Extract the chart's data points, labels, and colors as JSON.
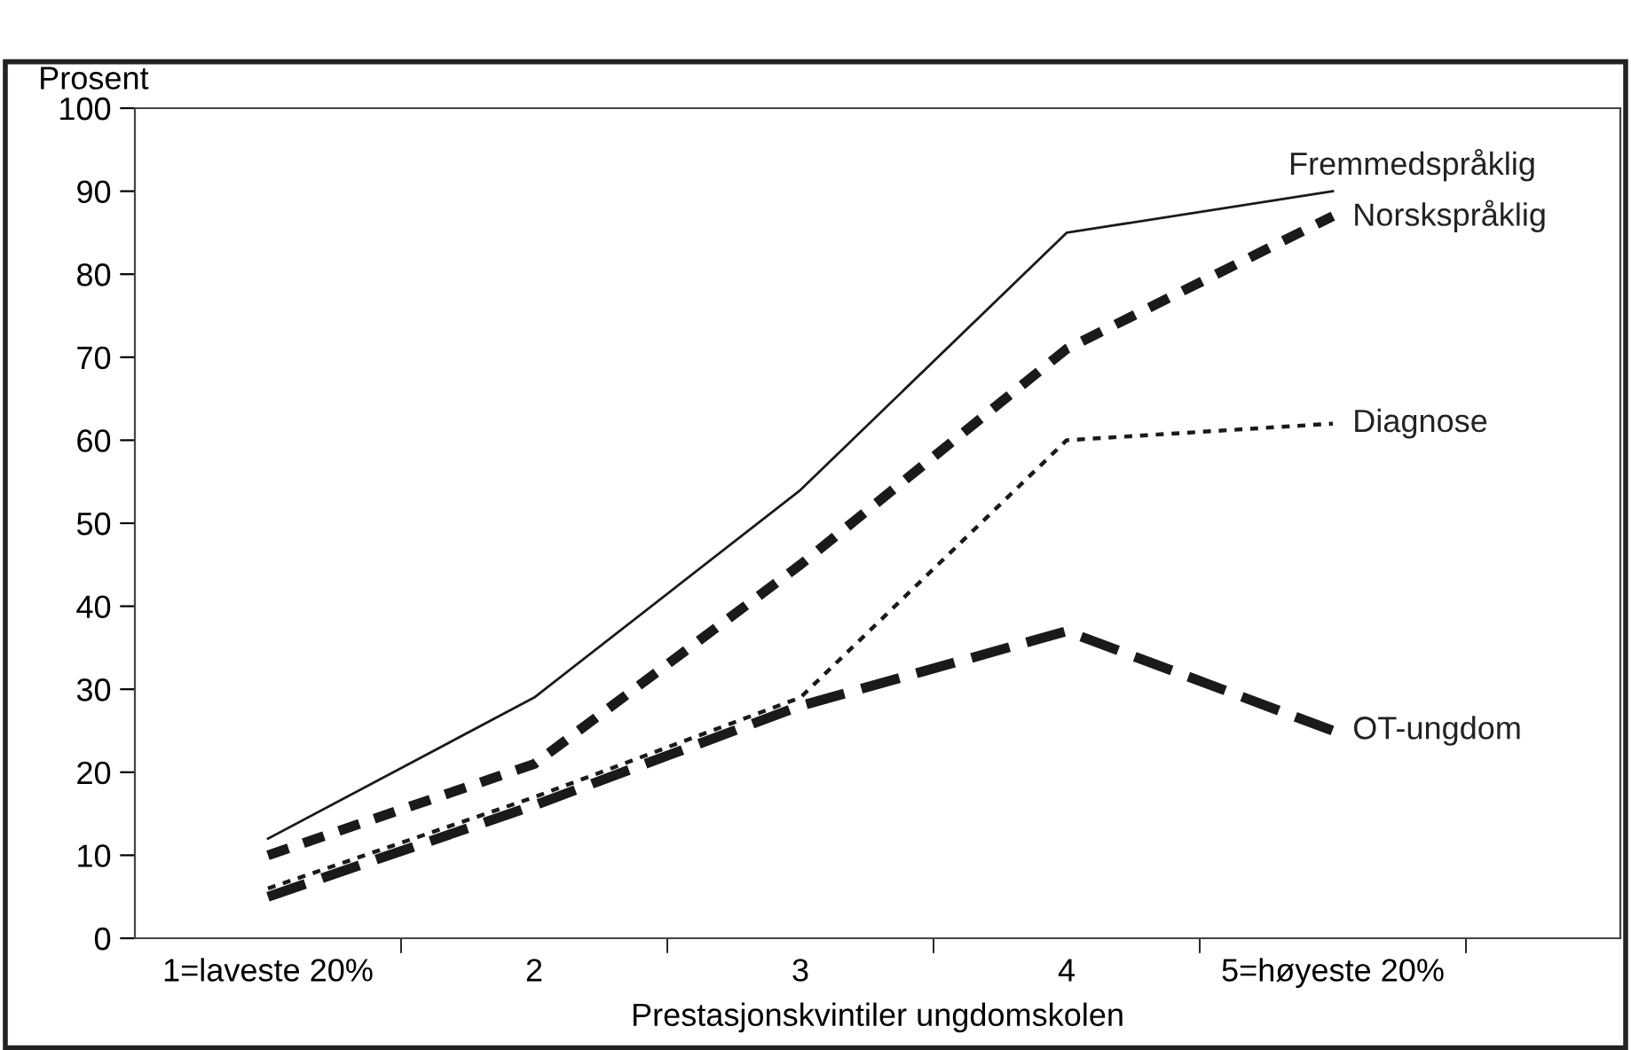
{
  "chart_data": {
    "type": "line",
    "ylabel": "Prosent",
    "xlabel": "Prestasjonskvintiler ungdomskolen",
    "categories": [
      "1=laveste 20%",
      "2",
      "3",
      "4",
      "5=høyeste 20%"
    ],
    "ylim": [
      0,
      100
    ],
    "yticks": [
      0,
      10,
      20,
      30,
      40,
      50,
      60,
      70,
      80,
      90,
      100
    ],
    "grid": false,
    "legend": false,
    "series": [
      {
        "name": "Fremmedspråklig",
        "color": "#1a1a1a",
        "line_style": "solid",
        "values": [
          12,
          29,
          54,
          85,
          90
        ]
      },
      {
        "name": "Norskspråklig",
        "color": "#1a1a1a",
        "line_style": "dashed",
        "values": [
          10,
          21,
          45,
          71,
          87
        ]
      },
      {
        "name": "Diagnose",
        "color": "#1a1a1a",
        "line_style": "dotted",
        "values": [
          6,
          17,
          29,
          60,
          62
        ]
      },
      {
        "name": "OT-ungdom",
        "color": "#1a1a1a",
        "line_style": "longdash",
        "values": [
          5,
          16,
          28,
          37,
          25
        ]
      }
    ]
  }
}
